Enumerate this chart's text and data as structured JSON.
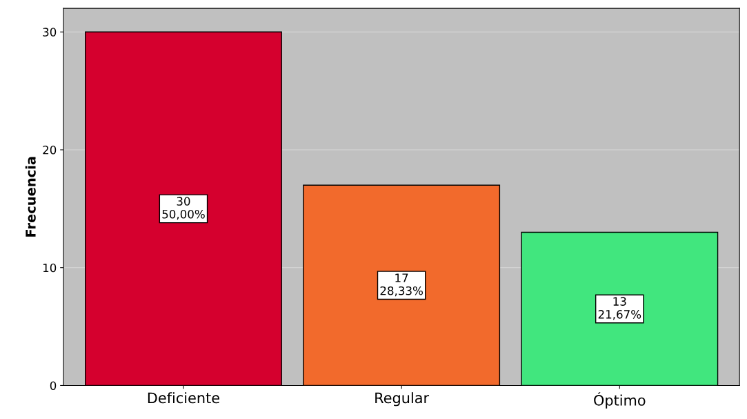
{
  "chart_data": {
    "type": "bar",
    "ylabel": "Frecuencia",
    "categories": [
      "Deficiente",
      "Regular",
      "Óptimo"
    ],
    "values": [
      30,
      17,
      13
    ],
    "colors": [
      "#d5002e",
      "#f26a2c",
      "#41e67e"
    ],
    "value_labels": [
      "30\n50,00%",
      "17\n28,33%",
      "13\n21,67%"
    ],
    "ylim": [
      0,
      32
    ],
    "yticks": [
      0,
      10,
      20,
      30
    ],
    "grid": "y",
    "legend": false
  }
}
